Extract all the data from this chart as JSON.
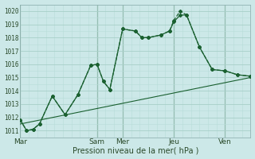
{
  "title": "",
  "xlabel": "Pression niveau de la mer( hPa )",
  "ylabel": "",
  "background_color": "#cce8e8",
  "plot_bg_color": "#cce8e8",
  "grid_color_major": "#a8cfc8",
  "grid_color_minor": "#b8ddd8",
  "line_color": "#1a6030",
  "ylim": [
    1010.5,
    1020.5
  ],
  "xlim": [
    0,
    108
  ],
  "x_ticks": [
    0,
    36,
    48,
    72,
    96
  ],
  "x_tick_labels": [
    "Mar",
    "Sam",
    "Mer",
    "Jeu",
    "Ven"
  ],
  "y_ticks": [
    1011,
    1012,
    1013,
    1014,
    1015,
    1016,
    1017,
    1018,
    1019,
    1020
  ],
  "vlines": [
    0,
    36,
    48,
    72,
    96
  ],
  "line1_x": [
    0,
    3,
    6,
    9,
    15,
    21,
    27,
    33,
    36,
    39,
    42,
    48,
    54,
    57,
    60,
    66,
    70,
    72,
    75,
    78,
    84,
    90,
    96,
    102,
    108
  ],
  "line1_y": [
    1011.8,
    1011.0,
    1011.1,
    1011.5,
    1013.6,
    1012.2,
    1013.7,
    1015.9,
    1016.0,
    1014.7,
    1014.1,
    1018.65,
    1018.5,
    1018.0,
    1018.0,
    1018.2,
    1018.5,
    1019.2,
    1019.7,
    1019.7,
    1017.3,
    1015.6,
    1015.5,
    1015.2,
    1015.1
  ],
  "line2_x": [
    0,
    3,
    6,
    9,
    15,
    21,
    27,
    33,
    36,
    39,
    42,
    48,
    54,
    57,
    60,
    66,
    70,
    72,
    75,
    78,
    84,
    90,
    96,
    102,
    108
  ],
  "line2_y": [
    1011.8,
    1011.0,
    1011.1,
    1011.5,
    1013.6,
    1012.2,
    1013.7,
    1015.9,
    1016.0,
    1014.7,
    1014.1,
    1018.65,
    1018.5,
    1018.0,
    1018.0,
    1018.2,
    1018.5,
    1019.3,
    1020.0,
    1019.7,
    1017.3,
    1015.6,
    1015.5,
    1015.2,
    1015.1
  ],
  "line3_x": [
    0,
    108
  ],
  "line3_y": [
    1011.5,
    1015.0
  ]
}
